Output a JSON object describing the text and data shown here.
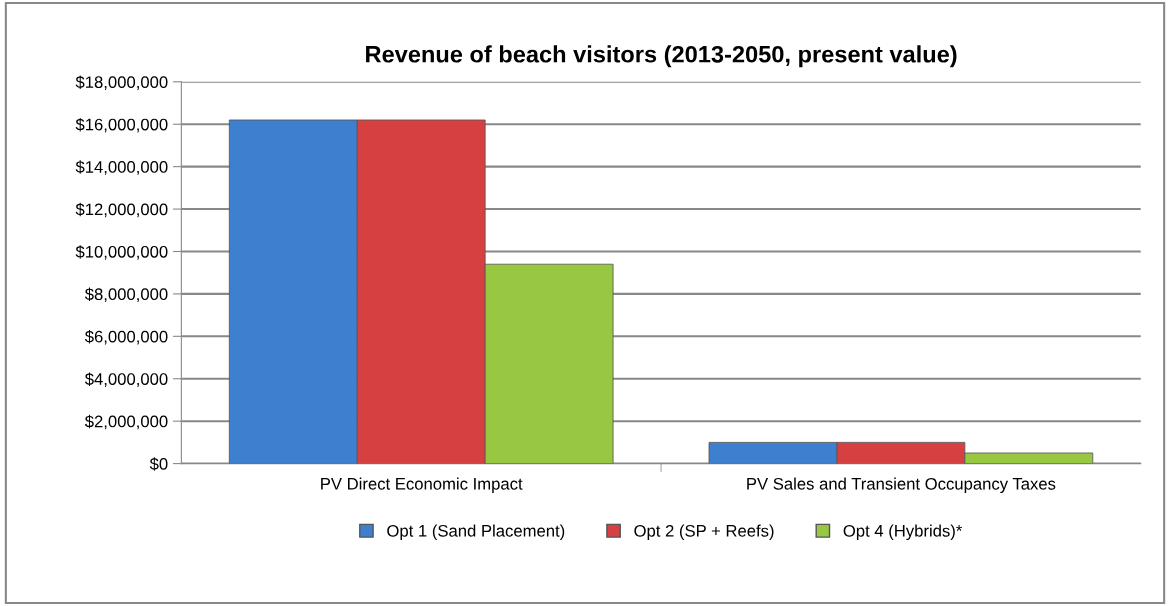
{
  "chart_data": {
    "type": "bar",
    "title": "Revenue of beach visitors (2013-2050, present value)",
    "categories": [
      "PV Direct Economic Impact",
      "PV Sales and Transient Occupancy Taxes"
    ],
    "series": [
      {
        "name": "Opt 1 (Sand Placement)",
        "color": "#3f7fd0",
        "values": [
          16200000,
          1000000
        ]
      },
      {
        "name": "Opt 2 (SP + Reefs)",
        "color": "#d64040",
        "values": [
          16200000,
          1000000
        ]
      },
      {
        "name": "Opt 4 (Hybrids)*",
        "color": "#98c842",
        "values": [
          9400000,
          500000
        ]
      }
    ],
    "ylim": [
      0,
      18000000
    ],
    "yticks": [
      {
        "value": 0,
        "label": "$0"
      },
      {
        "value": 2000000,
        "label": "$2,000,000"
      },
      {
        "value": 4000000,
        "label": "$4,000,000"
      },
      {
        "value": 6000000,
        "label": "$6,000,000"
      },
      {
        "value": 8000000,
        "label": "$8,000,000"
      },
      {
        "value": 10000000,
        "label": "$10,000,000"
      },
      {
        "value": 12000000,
        "label": "$12,000,000"
      },
      {
        "value": 14000000,
        "label": "$14,000,000"
      },
      {
        "value": 16000000,
        "label": "$16,000,000"
      },
      {
        "value": 18000000,
        "label": "$18,000,000"
      }
    ],
    "grid": "y",
    "legend": "bottom"
  }
}
